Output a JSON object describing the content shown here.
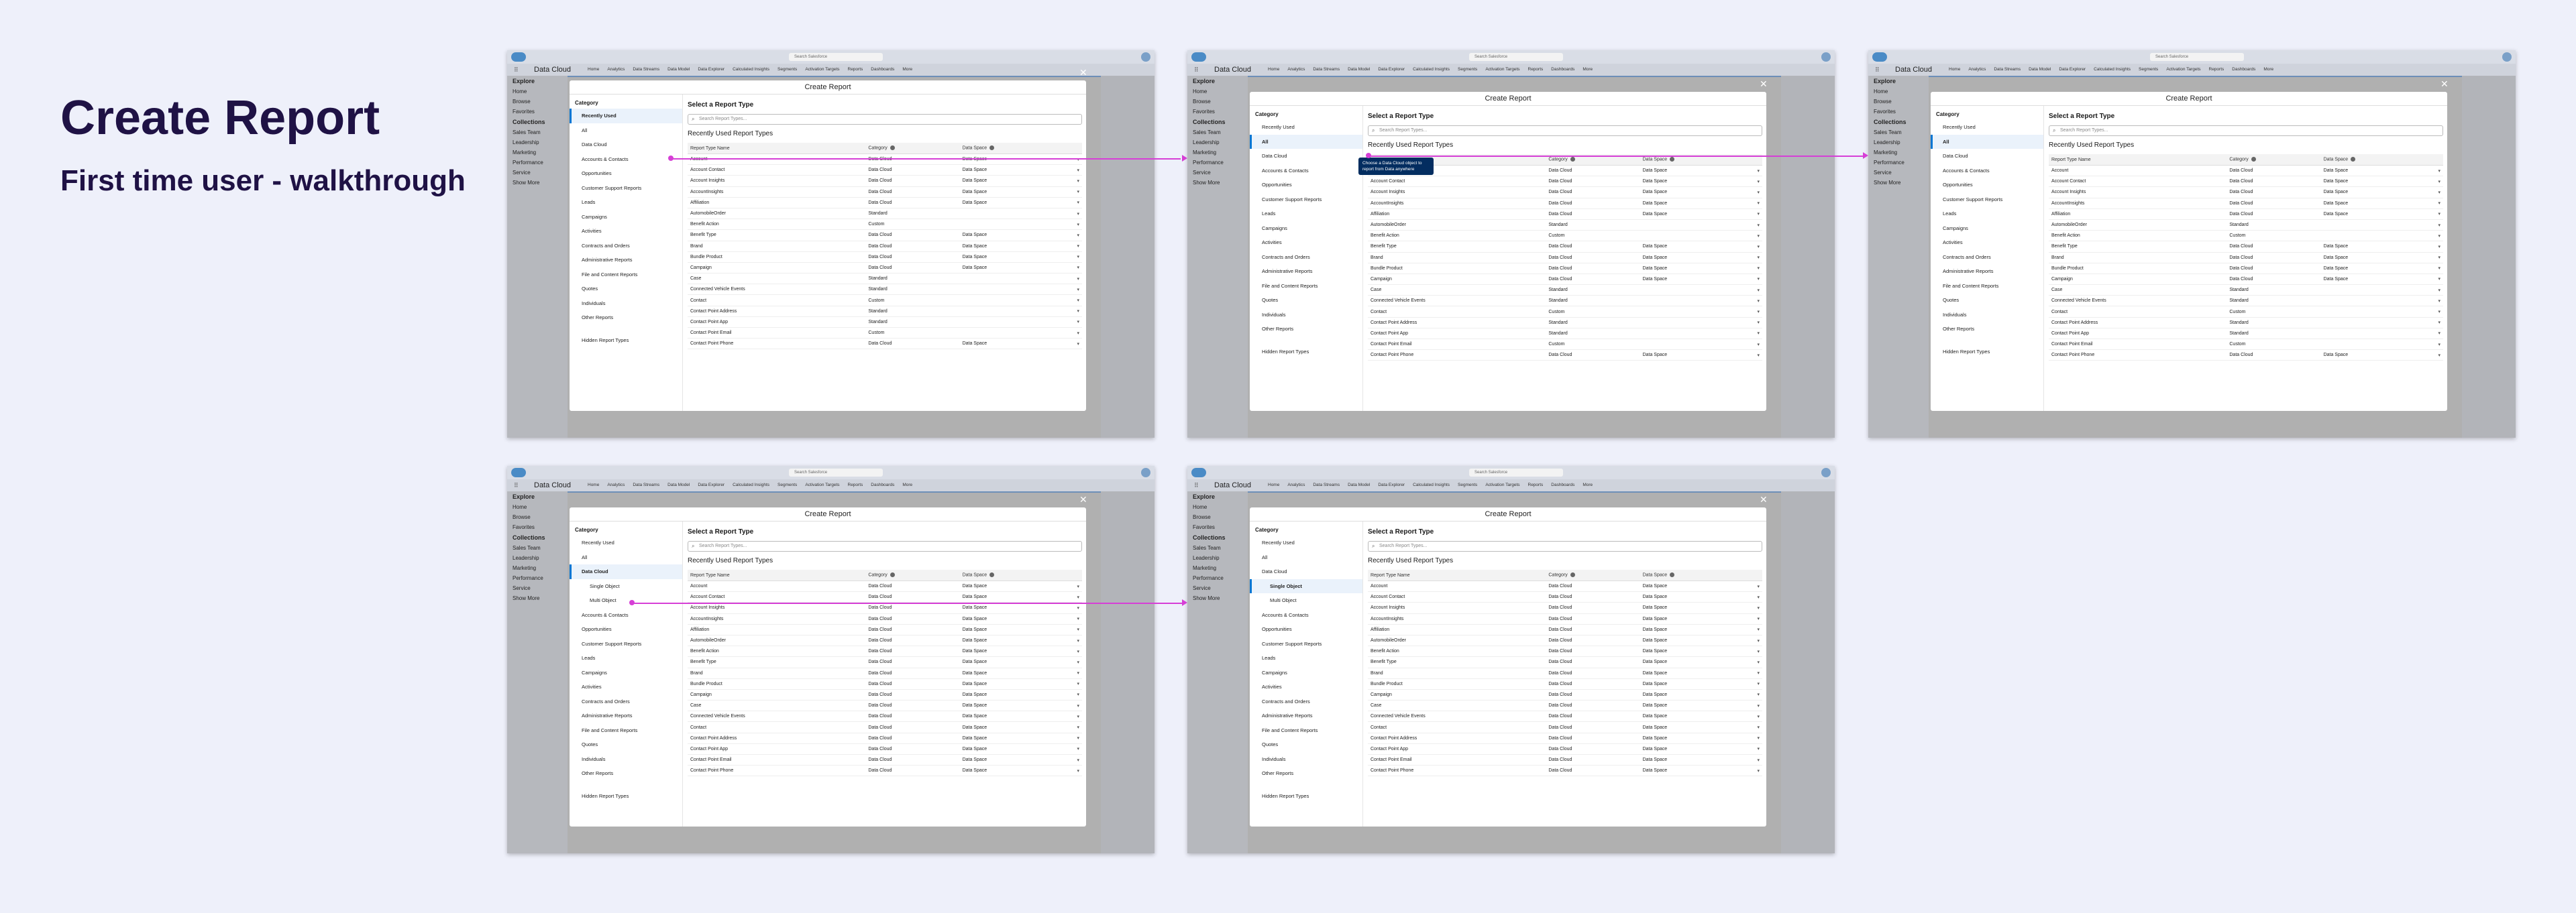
{
  "title": "Create Report",
  "subtitle": "First time user - walkthrough",
  "app": {
    "name": "Data Cloud",
    "search_placeholder": "Search Salesforce",
    "nav_tabs": [
      "Home",
      "Analytics",
      "Data Streams",
      "Data Model",
      "Data Explorer",
      "Calculated Insights",
      "Segments",
      "Activation Targets",
      "Reports",
      "Dashboards",
      "More"
    ],
    "sidebar": [
      "Explore",
      "Home",
      "Browse",
      "Favorites",
      "Collections",
      "Sales Team",
      "Leadership",
      "Marketing",
      "Performance",
      "Service",
      "Show More"
    ]
  },
  "modal": {
    "title": "Create Report",
    "category_label": "Category",
    "select_title": "Select a Report Type",
    "search_placeholder": "Search Report Types...",
    "recent_title": "Recently Used Report Types",
    "col_name": "Report Type Name",
    "col_category": "Category",
    "col_dataspace": "Data Space",
    "tooltip": "Choose a Data Cloud object to report from Data anywhere"
  },
  "categories_a": [
    "Recently Used",
    "All",
    "Data Cloud",
    "Accounts & Contacts",
    "Opportunities",
    "Customer Support Reports",
    "Leads",
    "Campaigns",
    "Activities",
    "Contracts and Orders",
    "Administrative Reports",
    "File and Content Reports",
    "Quotes",
    "Individuals",
    "Other Reports",
    "Hidden Report Types"
  ],
  "categories_b": [
    "Recently Used",
    "All",
    "Data Cloud",
    "Single Object",
    "Multi Object",
    "Accounts & Contacts",
    "Opportunities",
    "Customer Support Reports",
    "Leads",
    "Campaigns",
    "Activities",
    "Contracts and Orders",
    "Administrative Reports",
    "File and Content Reports",
    "Quotes",
    "Individuals",
    "Other Reports",
    "Hidden Report Types"
  ],
  "rows_recent": [
    [
      "Account",
      "Data Cloud",
      "Data Space"
    ],
    [
      "Account Contact",
      "Data Cloud",
      "Data Space"
    ],
    [
      "Account Insights",
      "Data Cloud",
      "Data Space"
    ],
    [
      "AccountInsights",
      "Data Cloud",
      "Data Space"
    ],
    [
      "Affiliation",
      "Data Cloud",
      "Data Space"
    ],
    [
      "AutomobileOrder",
      "Standard",
      ""
    ],
    [
      "Benefit Action",
      "Custom",
      ""
    ],
    [
      "Benefit Type",
      "Data Cloud",
      "Data Space"
    ],
    [
      "Brand",
      "Data Cloud",
      "Data Space"
    ],
    [
      "Bundle Product",
      "Data Cloud",
      "Data Space"
    ],
    [
      "Campaign",
      "Data Cloud",
      "Data Space"
    ],
    [
      "Case",
      "Standard",
      ""
    ],
    [
      "Connected Vehicle Events",
      "Standard",
      ""
    ],
    [
      "Contact",
      "Custom",
      ""
    ],
    [
      "Contact Point Address",
      "Standard",
      ""
    ],
    [
      "Contact Point App",
      "Standard",
      ""
    ],
    [
      "Contact Point Email",
      "Custom",
      ""
    ],
    [
      "Contact Point Phone",
      "Data Cloud",
      "Data Space"
    ]
  ],
  "rows_dc": [
    [
      "Account",
      "Data Cloud",
      "Data Space"
    ],
    [
      "Account Contact",
      "Data Cloud",
      "Data Space"
    ],
    [
      "Account Insights",
      "Data Cloud",
      "Data Space"
    ],
    [
      "AccountInsights",
      "Data Cloud",
      "Data Space"
    ],
    [
      "Affiliation",
      "Data Cloud",
      "Data Space"
    ],
    [
      "AutomobileOrder",
      "Data Cloud",
      "Data Space"
    ],
    [
      "Benefit Action",
      "Data Cloud",
      "Data Space"
    ],
    [
      "Benefit Type",
      "Data Cloud",
      "Data Space"
    ],
    [
      "Brand",
      "Data Cloud",
      "Data Space"
    ],
    [
      "Bundle Product",
      "Data Cloud",
      "Data Space"
    ],
    [
      "Campaign",
      "Data Cloud",
      "Data Space"
    ],
    [
      "Case",
      "Data Cloud",
      "Data Space"
    ],
    [
      "Connected Vehicle Events",
      "Data Cloud",
      "Data Space"
    ],
    [
      "Contact",
      "Data Cloud",
      "Data Space"
    ],
    [
      "Contact Point Address",
      "Data Cloud",
      "Data Space"
    ],
    [
      "Contact Point App",
      "Data Cloud",
      "Data Space"
    ],
    [
      "Contact Point Email",
      "Data Cloud",
      "Data Space"
    ],
    [
      "Contact Point Phone",
      "Data Cloud",
      "Data Space"
    ]
  ],
  "colors": {
    "accent": "#0176d3",
    "connector": "#d63fd6",
    "title": "#1f1245",
    "background": "#eef0fa"
  }
}
